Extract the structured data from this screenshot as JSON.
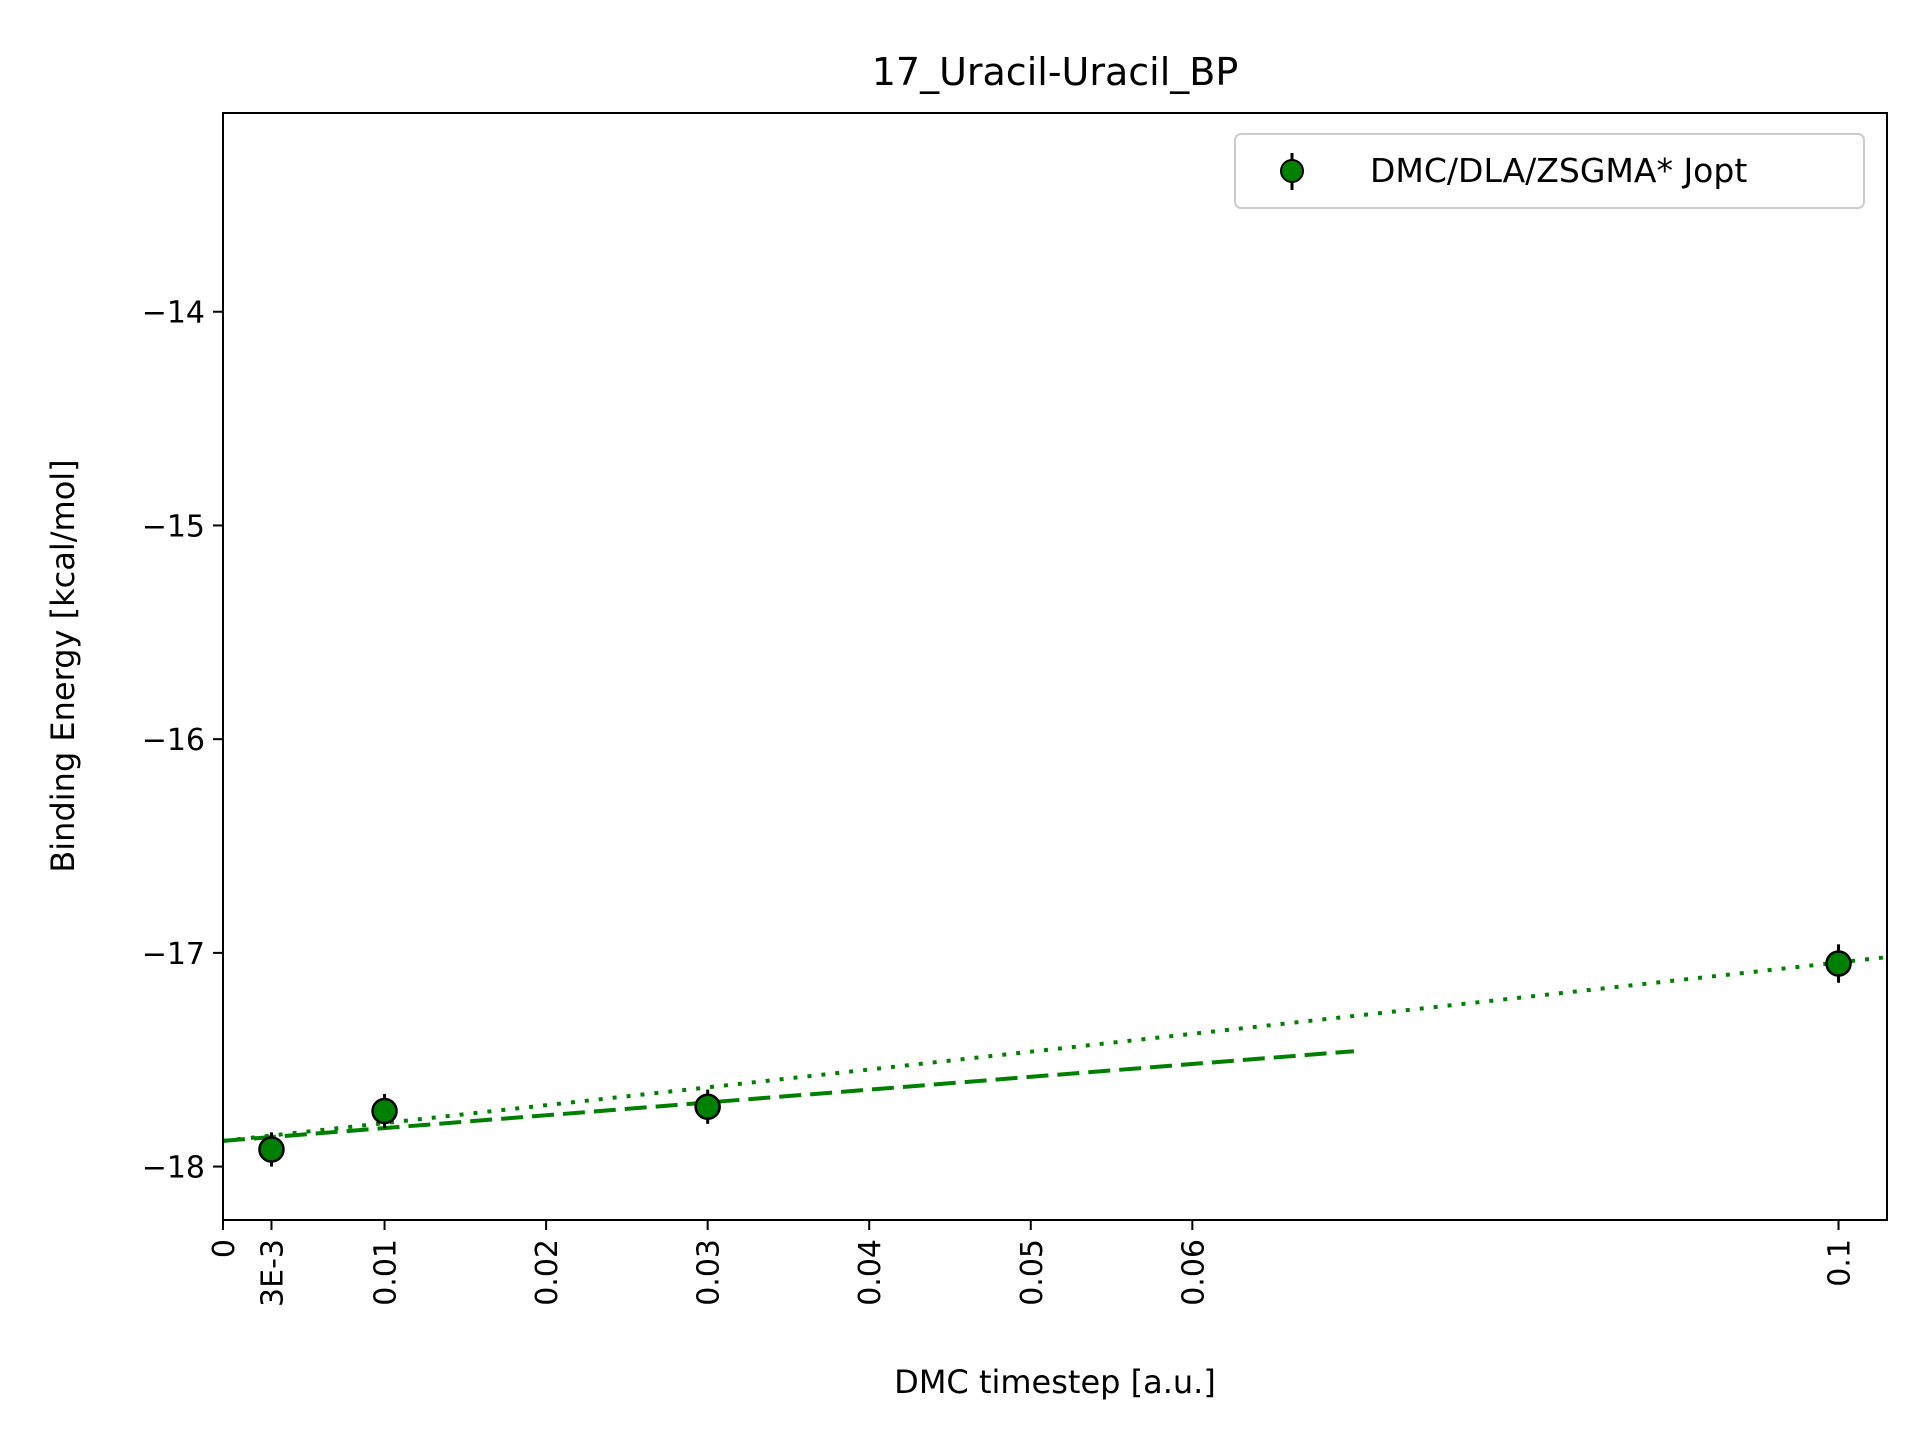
{
  "chart_data": {
    "type": "scatter",
    "title": "17_Uracil-Uracil_BP",
    "xlabel": "DMC timestep [a.u.]",
    "ylabel": "Binding Energy [kcal/mol]",
    "xlim": [
      0,
      0.103
    ],
    "ylim": [
      -18.25,
      -13.07
    ],
    "x_ticks": [
      {
        "value": 0,
        "label": "0"
      },
      {
        "value": 0.003,
        "label": "3E-3"
      },
      {
        "value": 0.01,
        "label": "0.01"
      },
      {
        "value": 0.02,
        "label": "0.02"
      },
      {
        "value": 0.03,
        "label": "0.03"
      },
      {
        "value": 0.04,
        "label": "0.04"
      },
      {
        "value": 0.05,
        "label": "0.05"
      },
      {
        "value": 0.06,
        "label": "0.06"
      },
      {
        "value": 0.1,
        "label": "0.1"
      }
    ],
    "y_ticks": [
      {
        "value": -14,
        "label": "−14"
      },
      {
        "value": -15,
        "label": "−15"
      },
      {
        "value": -16,
        "label": "−16"
      },
      {
        "value": -17,
        "label": "−17"
      },
      {
        "value": -18,
        "label": "−18"
      }
    ],
    "grid": false,
    "legend_position": "top-right",
    "series": [
      {
        "name": "DMC/DLA/ZSGMA* Jopt",
        "color": "#008000",
        "marker": "circle",
        "x": [
          0.003,
          0.01,
          0.03,
          0.1
        ],
        "y": [
          -17.92,
          -17.74,
          -17.72,
          -17.05
        ],
        "yerr": [
          0.08,
          0.08,
          0.08,
          0.09
        ]
      }
    ],
    "fit_lines": [
      {
        "style": "dashed",
        "color": "#008000",
        "x": [
          0,
          0.07
        ],
        "y": [
          -17.88,
          -17.46
        ]
      },
      {
        "style": "dotted",
        "color": "#008000",
        "x": [
          0,
          0.103
        ],
        "y": [
          -17.88,
          -17.02
        ]
      }
    ]
  }
}
